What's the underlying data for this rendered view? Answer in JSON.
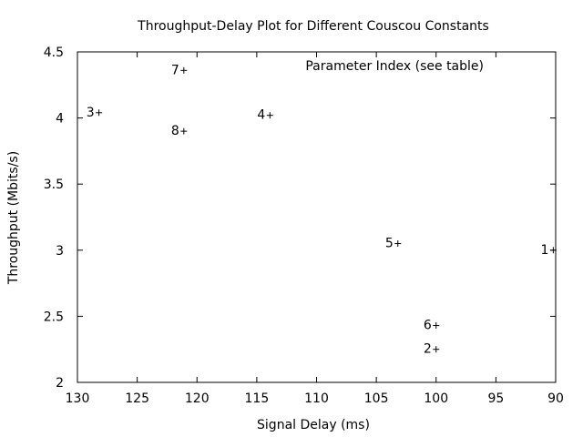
{
  "chart_data": {
    "type": "scatter",
    "title": "Throughput-Delay Plot for Different Couscou Constants",
    "xlabel": "Signal Delay (ms)",
    "ylabel": "Throughput (Mbits/s)",
    "xlim": [
      130,
      90
    ],
    "ylim": [
      2,
      4.5
    ],
    "x_reversed": true,
    "xticks": [
      130,
      125,
      120,
      115,
      110,
      105,
      100,
      95,
      90
    ],
    "yticks": [
      2,
      2.5,
      3,
      3.5,
      4,
      4.5
    ],
    "xtick_labels": [
      "130",
      "125",
      "120",
      "115",
      "110",
      "105",
      "100",
      "95",
      "90"
    ],
    "ytick_labels": [
      "2",
      "2.5",
      "3",
      "3.5",
      "4",
      "4.5"
    ],
    "grid": false,
    "legend": {
      "text": "Parameter Index (see table)",
      "position": "top-right"
    },
    "marker": "+",
    "points": [
      {
        "label": "1",
        "x": 90.2,
        "y": 3.0
      },
      {
        "label": "2",
        "x": 100.0,
        "y": 2.25
      },
      {
        "label": "3",
        "x": 128.2,
        "y": 4.04
      },
      {
        "label": "4",
        "x": 113.9,
        "y": 4.02
      },
      {
        "label": "5",
        "x": 103.2,
        "y": 3.05
      },
      {
        "label": "6",
        "x": 100.0,
        "y": 2.43
      },
      {
        "label": "7",
        "x": 121.1,
        "y": 4.36
      },
      {
        "label": "8",
        "x": 121.1,
        "y": 3.9
      }
    ]
  }
}
